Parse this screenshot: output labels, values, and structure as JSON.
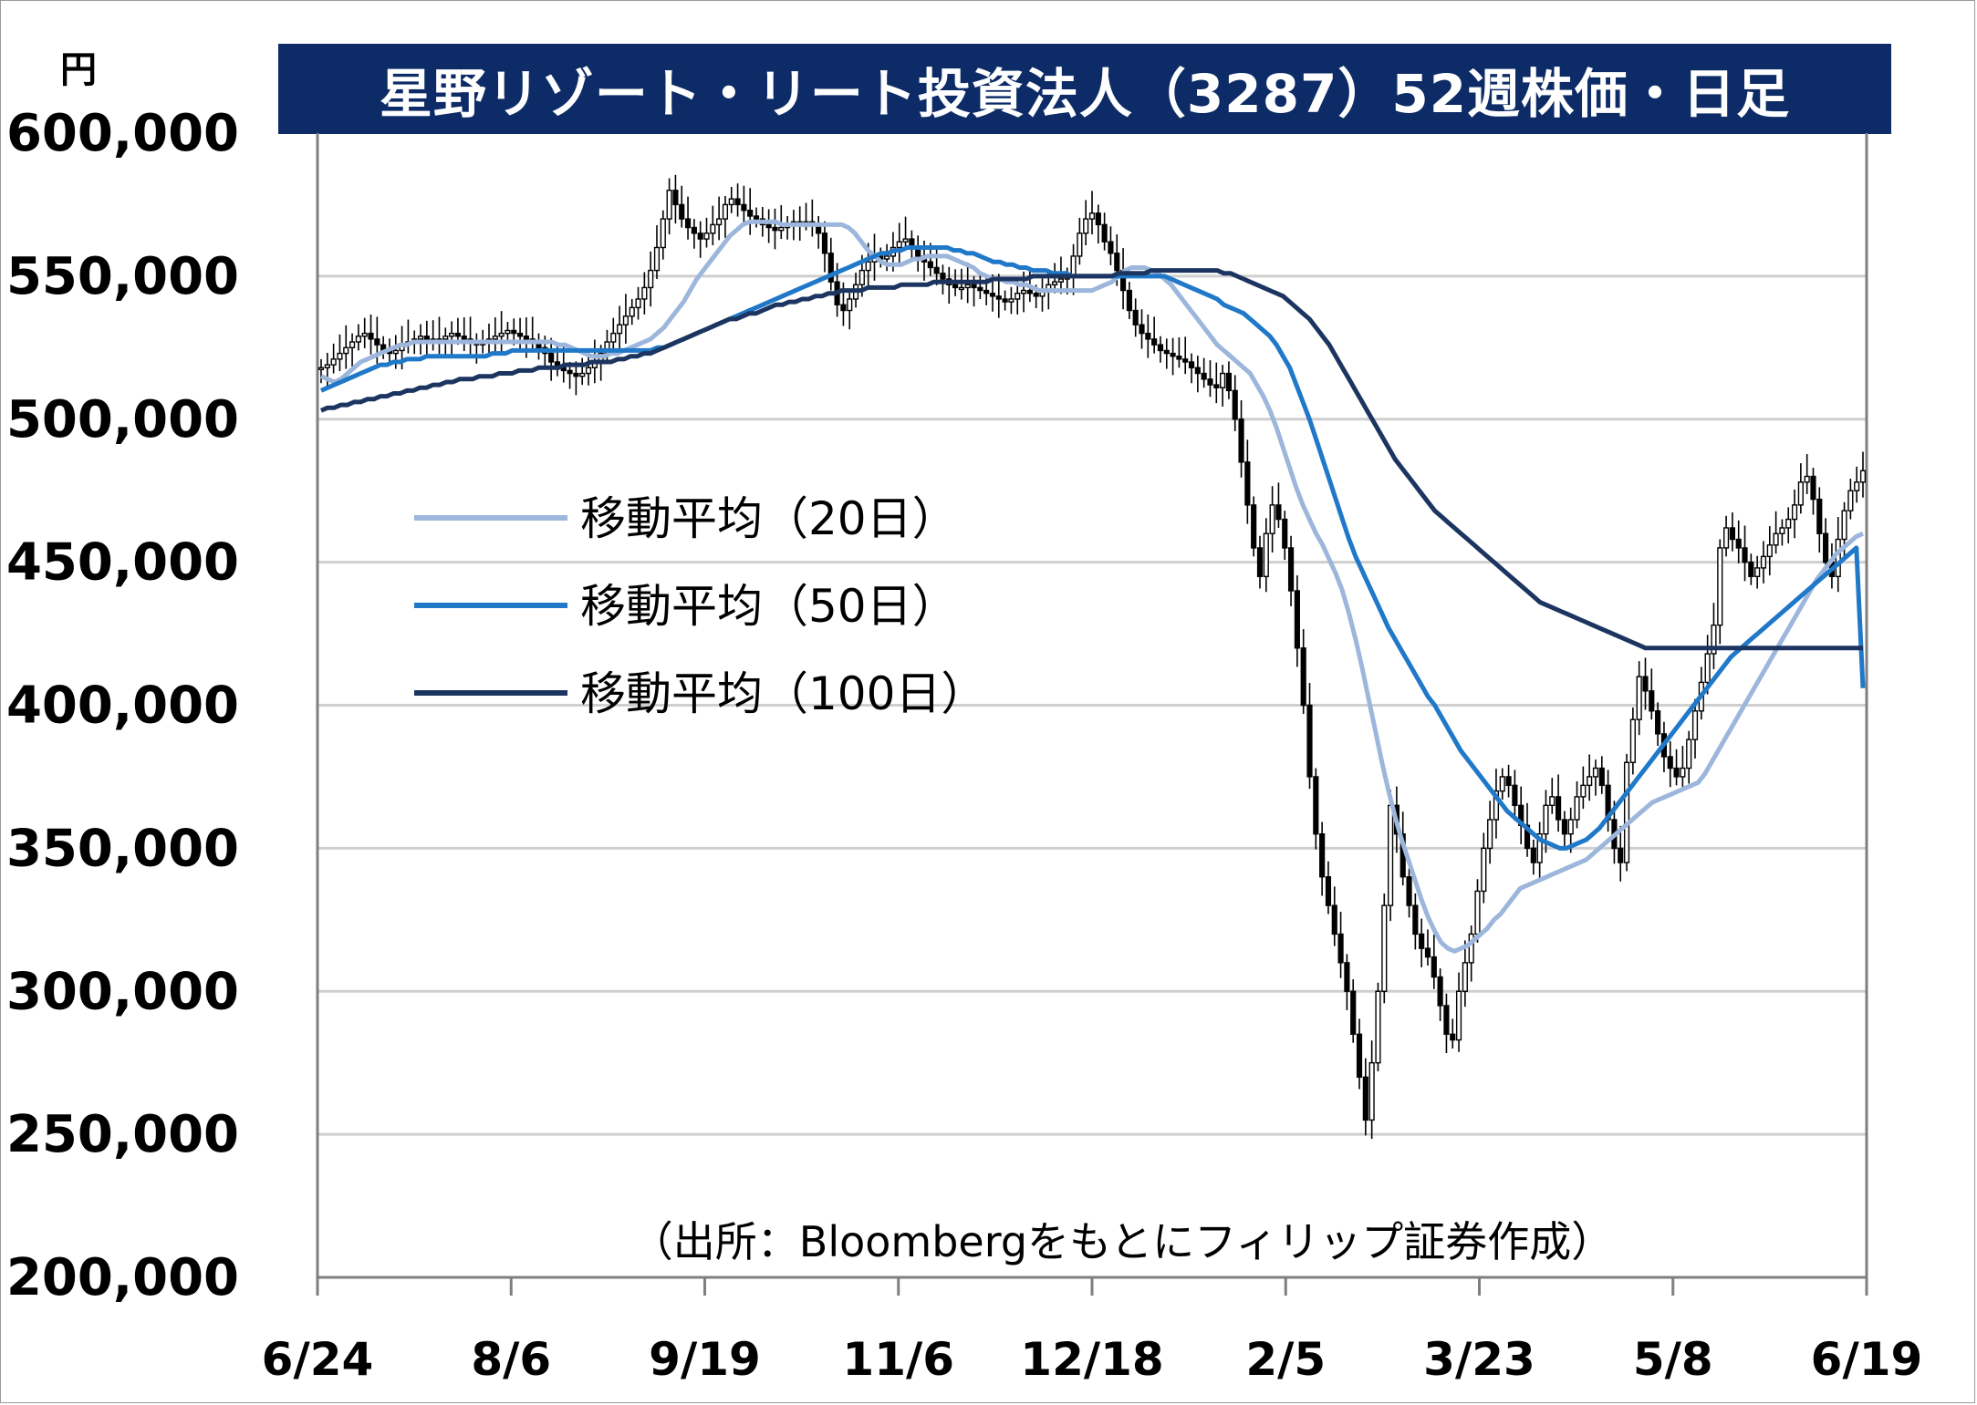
{
  "unit_label": "円",
  "chart_data": {
    "type": "candlestick",
    "title": "星野リゾート・リート投資法人（3287）52週株価・日足",
    "source_note": "（出所：Bloombergをもとにフィリップ証券作成）",
    "ylim": [
      200000,
      600000
    ],
    "y_ticks": [
      "600,000",
      "550,000",
      "500,000",
      "450,000",
      "400,000",
      "350,000",
      "300,000",
      "250,000",
      "200,000"
    ],
    "x_tick_labels": [
      "6/24",
      "8/6",
      "9/19",
      "11/6",
      "12/18",
      "2/5",
      "3/23",
      "5/8",
      "6/19"
    ],
    "grid": true,
    "legend_placement": "left-middle",
    "series_colors": {
      "ma20": "#9cb6dc",
      "ma50": "#1f78c8",
      "ma100": "#1c3560",
      "candle": "#000000"
    },
    "closes": [
      518000,
      519000,
      521000,
      523000,
      525000,
      527000,
      529000,
      530000,
      528000,
      526000,
      524000,
      523000,
      524000,
      526000,
      527000,
      528000,
      529000,
      528000,
      527000,
      528000,
      529000,
      530000,
      529000,
      528000,
      527000,
      526000,
      527000,
      528000,
      529000,
      530000,
      531000,
      530000,
      529000,
      528000,
      527000,
      525000,
      523000,
      520000,
      518000,
      517000,
      516000,
      515000,
      516000,
      518000,
      520000,
      523000,
      527000,
      530000,
      533000,
      536000,
      539000,
      542000,
      546000,
      552000,
      560000,
      570000,
      580000,
      575000,
      570000,
      567000,
      565000,
      563000,
      565000,
      568000,
      570000,
      575000,
      577000,
      575000,
      573000,
      571000,
      570000,
      568000,
      567000,
      566000,
      567000,
      568000,
      569000,
      569000,
      569000,
      568000,
      565000,
      558000,
      548000,
      540000,
      538000,
      542000,
      547000,
      552000,
      555000,
      557000,
      556000,
      557000,
      560000,
      562000,
      563000,
      560000,
      557000,
      555000,
      553000,
      551000,
      549000,
      547000,
      546000,
      546000,
      547000,
      546000,
      545000,
      544000,
      543000,
      542000,
      541000,
      542000,
      544000,
      545000,
      544000,
      543000,
      545000,
      547000,
      548000,
      549000,
      550000,
      557000,
      565000,
      570000,
      572000,
      568000,
      562000,
      558000,
      552000,
      545000,
      538000,
      533000,
      530000,
      528000,
      526000,
      524000,
      523000,
      522000,
      521000,
      520000,
      518000,
      516000,
      514000,
      512000,
      511000,
      516000,
      510000,
      500000,
      485000,
      470000,
      455000,
      445000,
      460000,
      470000,
      465000,
      455000,
      440000,
      420000,
      400000,
      375000,
      355000,
      340000,
      330000,
      320000,
      310000,
      300000,
      285000,
      270000,
      255000,
      275000,
      300000,
      330000,
      365000,
      355000,
      340000,
      330000,
      320000,
      315000,
      312000,
      305000,
      295000,
      285000,
      283000,
      300000,
      310000,
      320000,
      335000,
      350000,
      360000,
      370000,
      375000,
      372000,
      365000,
      358000,
      350000,
      345000,
      355000,
      365000,
      368000,
      360000,
      355000,
      360000,
      368000,
      372000,
      375000,
      378000,
      372000,
      360000,
      350000,
      345000,
      380000,
      395000,
      410000,
      405000,
      398000,
      390000,
      382000,
      378000,
      375000,
      378000,
      388000,
      398000,
      408000,
      418000,
      428000,
      455000,
      462000,
      458000,
      455000,
      450000,
      445000,
      448000,
      452000,
      456000,
      460000,
      462000,
      465000,
      470000,
      478000,
      480000,
      472000,
      460000,
      450000,
      445000,
      458000,
      468000,
      475000,
      478000,
      482000
    ],
    "series": [
      {
        "name": "移動平均（20日）",
        "values": [
          515000,
          514000,
          513000,
          514000,
          516000,
          518000,
          520000,
          521000,
          522000,
          523000,
          524000,
          525000,
          526000,
          526000,
          527000,
          527000,
          527000,
          527000,
          527000,
          527000,
          527000,
          527000,
          527000,
          527000,
          527000,
          527000,
          527000,
          527000,
          527000,
          527000,
          527000,
          527000,
          527000,
          527000,
          527000,
          527000,
          526000,
          526000,
          525000,
          524000,
          523000,
          522000,
          522000,
          522000,
          523000,
          523000,
          524000,
          525000,
          526000,
          527000,
          528000,
          530000,
          532000,
          535000,
          538000,
          541000,
          545000,
          549000,
          552000,
          555000,
          558000,
          561000,
          564000,
          566000,
          568000,
          569000,
          569000,
          569000,
          569000,
          569000,
          568000,
          568000,
          568000,
          568000,
          568000,
          568000,
          568000,
          568000,
          568000,
          568000,
          567000,
          565000,
          562000,
          559000,
          557000,
          555000,
          554000,
          554000,
          554000,
          555000,
          556000,
          556000,
          557000,
          557000,
          557000,
          557000,
          556000,
          555000,
          554000,
          553000,
          551000,
          550000,
          549000,
          549000,
          548000,
          548000,
          547000,
          547000,
          546000,
          545000,
          545000,
          545000,
          545000,
          545000,
          545000,
          545000,
          545000,
          545000,
          546000,
          547000,
          548000,
          550000,
          552000,
          553000,
          553000,
          553000,
          552000,
          551000,
          549000,
          547000,
          544000,
          541000,
          538000,
          535000,
          532000,
          529000,
          526000,
          524000,
          522000,
          520000,
          518000,
          516000,
          512000,
          508000,
          503000,
          497000,
          490000,
          483000,
          476000,
          470000,
          465000,
          460000,
          456000,
          451000,
          446000,
          440000,
          432000,
          423000,
          413000,
          402000,
          391000,
          380000,
          370000,
          361000,
          353000,
          346000,
          339000,
          332000,
          326000,
          321000,
          317000,
          315000,
          314000,
          315000,
          316000,
          318000,
          320000,
          322000,
          325000,
          327000,
          330000,
          333000,
          336000,
          337000,
          338000,
          339000,
          340000,
          341000,
          342000,
          343000,
          344000,
          345000,
          346000,
          348000,
          350000,
          352000,
          354000,
          356000,
          358000,
          360000,
          362000,
          364000,
          366000,
          367000,
          368000,
          369000,
          370000,
          371000,
          372000,
          373000,
          376000,
          380000,
          384000,
          388000,
          392000,
          396000,
          400000,
          404000,
          408000,
          412000,
          416000,
          420000,
          424000,
          428000,
          432000,
          436000,
          440000,
          444000,
          447000,
          450000,
          453000,
          455000,
          457000,
          459000,
          460000
        ]
      },
      {
        "name": "移動平均（50日）",
        "values": [
          510000,
          511000,
          512000,
          513000,
          514000,
          515000,
          516000,
          517000,
          518000,
          519000,
          519000,
          520000,
          520000,
          521000,
          521000,
          521000,
          522000,
          522000,
          522000,
          522000,
          522000,
          522000,
          522000,
          522000,
          522000,
          522000,
          523000,
          523000,
          523000,
          524000,
          524000,
          524000,
          524000,
          524000,
          524000,
          524000,
          524000,
          524000,
          524000,
          524000,
          524000,
          524000,
          524000,
          524000,
          524000,
          524000,
          524000,
          524000,
          524000,
          524000,
          524000,
          525000,
          525000,
          526000,
          527000,
          528000,
          529000,
          530000,
          531000,
          532000,
          533000,
          534000,
          535000,
          536000,
          537000,
          538000,
          539000,
          540000,
          541000,
          542000,
          543000,
          544000,
          545000,
          546000,
          547000,
          548000,
          549000,
          550000,
          551000,
          552000,
          553000,
          554000,
          555000,
          556000,
          557000,
          558000,
          558000,
          559000,
          559000,
          560000,
          560000,
          560000,
          560000,
          560000,
          560000,
          560000,
          559000,
          559000,
          558000,
          558000,
          557000,
          556000,
          555000,
          555000,
          554000,
          554000,
          553000,
          553000,
          552000,
          552000,
          552000,
          551000,
          551000,
          551000,
          550000,
          550000,
          550000,
          550000,
          550000,
          550000,
          550000,
          550000,
          550000,
          550000,
          550000,
          550000,
          550000,
          550000,
          550000,
          549000,
          548000,
          547000,
          546000,
          545000,
          544000,
          543000,
          542000,
          540000,
          539000,
          538000,
          537000,
          535000,
          533000,
          531000,
          529000,
          526000,
          522000,
          518000,
          512000,
          506000,
          500000,
          493000,
          486000,
          479000,
          472000,
          465000,
          458000,
          452000,
          447000,
          442000,
          437000,
          432000,
          427000,
          423000,
          419000,
          415000,
          411000,
          407000,
          403000,
          400000,
          396000,
          392000,
          388000,
          384000,
          381000,
          378000,
          375000,
          372000,
          369000,
          366000,
          363000,
          361000,
          359000,
          357000,
          355000,
          353000,
          352000,
          351000,
          350000,
          350000,
          351000,
          352000,
          353000,
          355000,
          357000,
          360000,
          363000,
          366000,
          369000,
          372000,
          375000,
          378000,
          381000,
          384000,
          387000,
          390000,
          393000,
          396000,
          399000,
          402000,
          405000,
          408000,
          411000,
          414000,
          417000,
          419000,
          421000,
          423000,
          425000,
          427000,
          429000,
          431000,
          433000,
          435000,
          437000,
          439000,
          441000,
          443000,
          445000,
          447000,
          449000,
          451000,
          453000,
          455000,
          406000
        ]
      },
      {
        "name": "移動平均（100日）",
        "values": [
          503000,
          504000,
          504000,
          505000,
          505000,
          506000,
          506000,
          507000,
          507000,
          508000,
          508000,
          509000,
          509000,
          510000,
          510000,
          511000,
          511000,
          512000,
          512000,
          513000,
          513000,
          514000,
          514000,
          514000,
          515000,
          515000,
          515000,
          516000,
          516000,
          516000,
          517000,
          517000,
          517000,
          518000,
          518000,
          518000,
          518000,
          519000,
          519000,
          519000,
          519000,
          520000,
          520000,
          520000,
          520000,
          521000,
          521000,
          522000,
          522000,
          523000,
          523000,
          524000,
          525000,
          526000,
          527000,
          528000,
          529000,
          530000,
          531000,
          532000,
          533000,
          534000,
          535000,
          535000,
          536000,
          537000,
          537000,
          538000,
          539000,
          540000,
          540000,
          541000,
          541000,
          542000,
          542000,
          543000,
          543000,
          544000,
          544000,
          545000,
          545000,
          545000,
          545000,
          546000,
          546000,
          546000,
          546000,
          546000,
          547000,
          547000,
          547000,
          547000,
          547000,
          548000,
          548000,
          548000,
          548000,
          548000,
          548000,
          548000,
          548000,
          548000,
          549000,
          549000,
          549000,
          549000,
          549000,
          549000,
          550000,
          550000,
          550000,
          550000,
          550000,
          550000,
          550000,
          550000,
          550000,
          550000,
          550000,
          550000,
          550000,
          551000,
          551000,
          551000,
          551000,
          551000,
          552000,
          552000,
          552000,
          552000,
          552000,
          552000,
          552000,
          552000,
          552000,
          552000,
          552000,
          551000,
          551000,
          550000,
          549000,
          548000,
          547000,
          546000,
          545000,
          544000,
          543000,
          541000,
          539000,
          537000,
          535000,
          532000,
          529000,
          526000,
          522000,
          518000,
          514000,
          510000,
          506000,
          502000,
          498000,
          494000,
          490000,
          486000,
          483000,
          480000,
          477000,
          474000,
          471000,
          468000,
          466000,
          464000,
          462000,
          460000,
          458000,
          456000,
          454000,
          452000,
          450000,
          448000,
          446000,
          444000,
          442000,
          440000,
          438000,
          436000,
          435000,
          434000,
          433000,
          432000,
          431000,
          430000,
          429000,
          428000,
          427000,
          426000,
          425000,
          424000,
          423000,
          422000,
          421000,
          420000,
          420000,
          420000,
          420000,
          420000,
          420000,
          420000,
          420000,
          420000,
          420000,
          420000,
          420000,
          420000,
          420000,
          420000,
          420000,
          420000,
          420000,
          420000,
          420000,
          420000,
          420000,
          420000,
          420000,
          420000,
          420000,
          420000,
          420000,
          420000,
          420000,
          420000,
          420000,
          420000,
          420000
        ]
      }
    ]
  }
}
